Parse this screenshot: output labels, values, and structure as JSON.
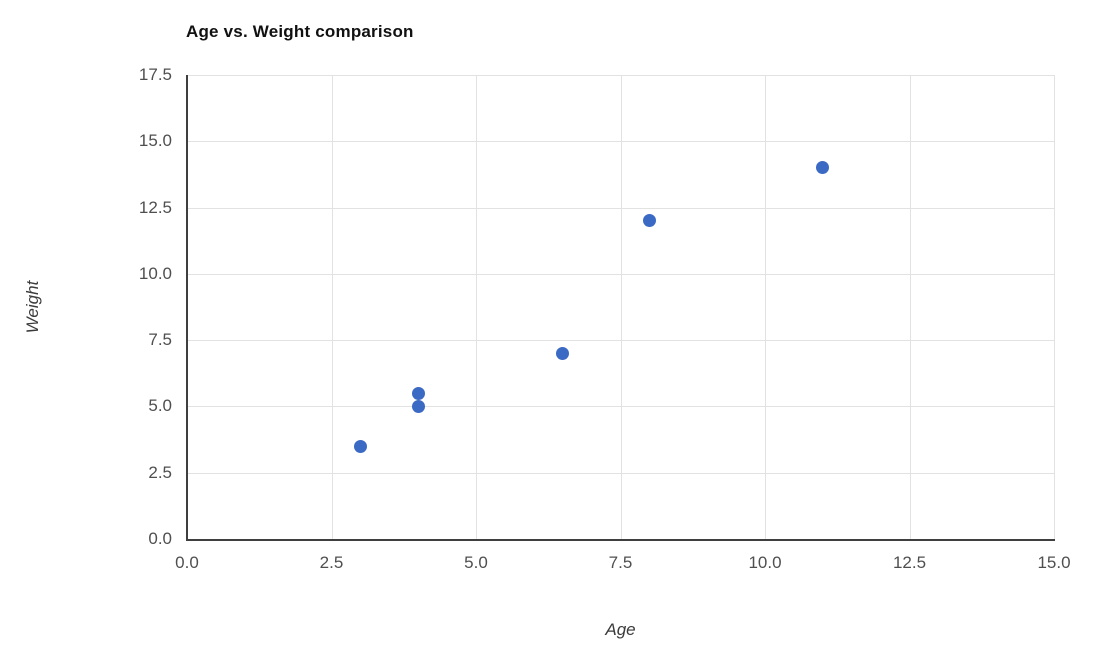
{
  "chart_data": {
    "type": "scatter",
    "title": "Age vs. Weight comparison",
    "xlabel": "Age",
    "ylabel": "Weight",
    "xlim": [
      0,
      15
    ],
    "ylim": [
      0,
      17.5
    ],
    "x_ticks": [
      0,
      2.5,
      5,
      7.5,
      10,
      12.5,
      15
    ],
    "y_ticks": [
      0,
      2.5,
      5,
      7.5,
      10,
      12.5,
      15,
      17.5
    ],
    "tick_decimals": 1,
    "grid": true,
    "legend_position": "none",
    "series": [
      {
        "name": "Weight",
        "points": [
          {
            "x": 3,
            "y": 3.5
          },
          {
            "x": 4,
            "y": 5
          },
          {
            "x": 4,
            "y": 5.5
          },
          {
            "x": 6.5,
            "y": 7
          },
          {
            "x": 8,
            "y": 12
          },
          {
            "x": 11,
            "y": 14
          }
        ],
        "color": "#3b6ac5"
      }
    ],
    "colors": {
      "background": "#ffffff",
      "grid": "#e2e2e2",
      "axis": "#3f3f3f",
      "tick_label": "#4f4f4f",
      "axis_label": "#3b3b3b",
      "title": "#111111"
    }
  }
}
